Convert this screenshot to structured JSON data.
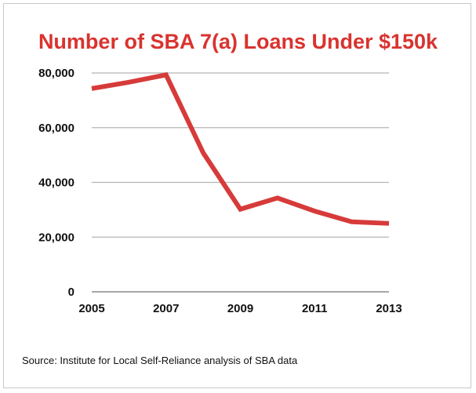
{
  "chart_data": {
    "type": "line",
    "title": "Number of SBA 7(a) Loans Under $150k",
    "xlabel": "",
    "ylabel": "",
    "x": [
      2005,
      2006,
      2007,
      2008,
      2009,
      2010,
      2011,
      2012,
      2013
    ],
    "series": [
      {
        "name": "SBA 7(a) Loans Under $150k",
        "values": [
          74300,
          76600,
          79300,
          50800,
          30200,
          34300,
          29500,
          25600,
          25000
        ],
        "color": "#d63b3a"
      }
    ],
    "xticks": [
      "2005",
      "2007",
      "2009",
      "2011",
      "2013"
    ],
    "yticks": [
      "0",
      "20,000",
      "40,000",
      "60,000",
      "80,000"
    ],
    "ylim": [
      0,
      80000
    ],
    "xlim": [
      2005,
      2013
    ],
    "grid": true,
    "legend": "none"
  },
  "source": "Source: Institute for Local Self-Reliance analysis of SBA data"
}
